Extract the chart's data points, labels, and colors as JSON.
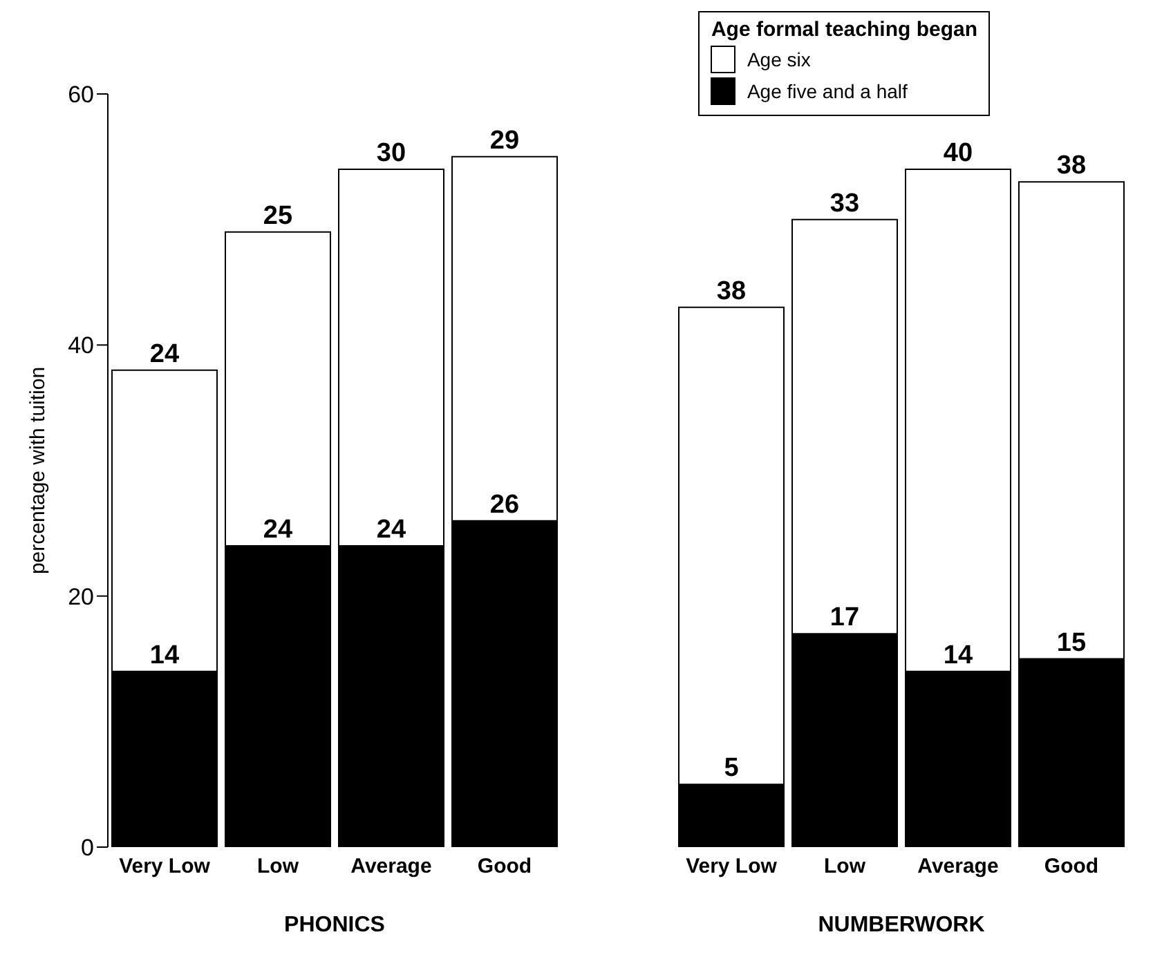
{
  "chart_data": {
    "type": "bar",
    "stacked": true,
    "ylabel": "percentage with tuition",
    "legend_title": "Age formal teaching began",
    "legend": "top right",
    "data_labels": true,
    "grid": false,
    "categories": [
      "Very Low",
      "Low",
      "Average",
      "Good",
      null,
      "Very Low",
      "Low",
      "Average",
      "Good"
    ],
    "series": [
      {
        "name": "Age five and a half",
        "color": "#000000",
        "values": [
          14,
          24,
          24,
          26,
          null,
          5,
          17,
          14,
          15
        ]
      },
      {
        "name": "Age six",
        "color": "#ffffff",
        "values": [
          24,
          25,
          30,
          29,
          null,
          38,
          33,
          40,
          38
        ]
      }
    ],
    "ylim": [
      0,
      60
    ],
    "yticks": [
      0,
      20,
      40,
      60
    ],
    "annotations": [
      "PHONICS",
      "NUMBERWORK"
    ]
  }
}
